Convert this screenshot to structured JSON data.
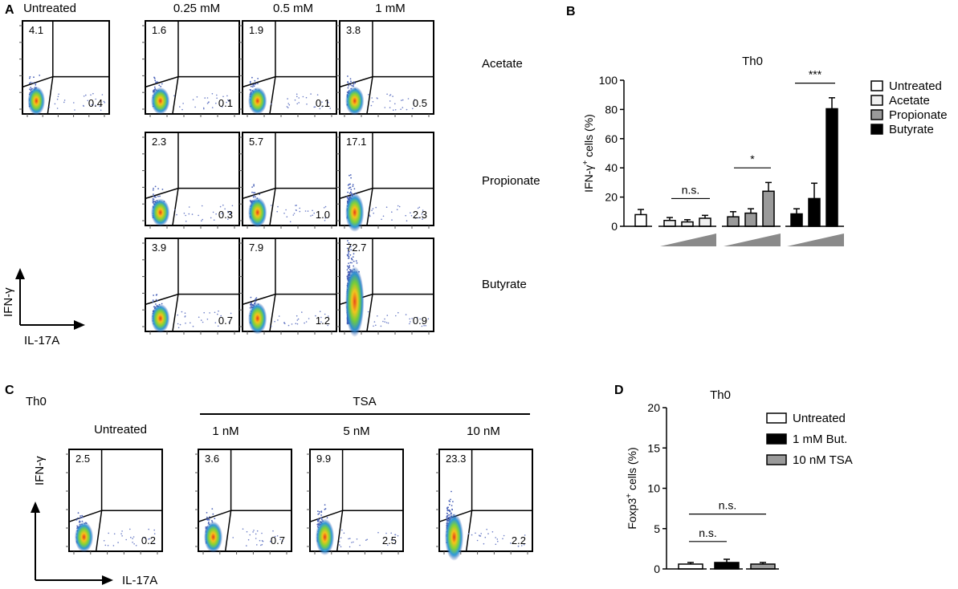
{
  "panel_labels": {
    "a": "A",
    "b": "B",
    "c": "C",
    "d": "D"
  },
  "panel_a": {
    "column_headers": [
      "Untreated",
      "0.25 mM",
      "0.5 mM",
      "1 mM"
    ],
    "row_labels": [
      "Acetate",
      "Propionate",
      "Butyrate"
    ],
    "axis_y": "IFN-γ",
    "axis_x": "IL-17A",
    "untreated_plot": {
      "top_left": "4.1",
      "bottom_right": "0.4"
    },
    "plots": [
      [
        {
          "top_left": "1.6",
          "bottom_right": "0.1"
        },
        {
          "top_left": "1.9",
          "bottom_right": "0.1"
        },
        {
          "top_left": "3.8",
          "bottom_right": "0.5"
        }
      ],
      [
        {
          "top_left": "2.3",
          "bottom_right": "0.3"
        },
        {
          "top_left": "5.7",
          "bottom_right": "1.0"
        },
        {
          "top_left": "17.1",
          "bottom_right": "2.3"
        }
      ],
      [
        {
          "top_left": "3.9",
          "bottom_right": "0.7"
        },
        {
          "top_left": "7.9",
          "bottom_right": "1.2"
        },
        {
          "top_left": "72.7",
          "bottom_right": "0.9"
        }
      ]
    ]
  },
  "panel_c": {
    "condition_label": "Th0",
    "group_label": "TSA",
    "column_headers": [
      "Untreated",
      "1 nM",
      "5 nM",
      "10 nM"
    ],
    "axis_y": "IFN-γ",
    "axis_x": "IL-17A",
    "plots": [
      {
        "top_left": "2.5",
        "bottom_right": "0.2"
      },
      {
        "top_left": "3.6",
        "bottom_right": "0.7"
      },
      {
        "top_left": "9.9",
        "bottom_right": "2.5"
      },
      {
        "top_left": "23.3",
        "bottom_right": "2.2"
      }
    ]
  },
  "chart_data": [
    {
      "id": "B",
      "type": "bar",
      "title": "Th0",
      "ylabel": "IFN-γ⁺ cells (%)",
      "ylabel_main": "IFN-γ",
      "ylabel_rest": " cells (%)",
      "ylabel_sup": "+",
      "ylim": [
        0,
        100
      ],
      "yticks": [
        "0",
        "20",
        "40",
        "60",
        "80",
        "100"
      ],
      "legend": [
        {
          "name": "Untreated",
          "color": "#ffffff"
        },
        {
          "name": "Acetate",
          "color": "#f0f0f0"
        },
        {
          "name": "Propionate",
          "color": "#9a9a9a"
        },
        {
          "name": "Butyrate",
          "color": "#000000"
        }
      ],
      "categories": [
        "Untreated",
        "Acetate 0.25 mM",
        "Acetate 0.5 mM",
        "Acetate 1 mM",
        "Propionate 0.25 mM",
        "Propionate 0.5 mM",
        "Propionate 1 mM",
        "Butyrate 0.25 mM",
        "Butyrate 0.5 mM",
        "Butyrate 1 mM"
      ],
      "values": [
        8,
        4,
        3,
        5.5,
        6.5,
        9,
        24,
        8.5,
        19,
        80.5
      ],
      "errors": [
        3.5,
        2,
        1.5,
        2,
        3.5,
        3,
        6,
        3.5,
        10.5,
        7.5
      ],
      "significance": [
        {
          "label": "n.s.",
          "groups": "Acetate"
        },
        {
          "label": "*",
          "groups": "Propionate"
        },
        {
          "label": "***",
          "groups": "Butyrate"
        }
      ]
    },
    {
      "id": "D",
      "type": "bar",
      "title": "Th0",
      "ylabel": "Foxp3⁺ cells (%)",
      "ylabel_main": "Foxp3",
      "ylabel_rest": " cells (%)",
      "ylabel_sup": "+",
      "ylim": [
        0,
        20
      ],
      "yticks": [
        "0",
        "5",
        "10",
        "15",
        "20"
      ],
      "legend": [
        {
          "name": "Untreated",
          "color": "#ffffff"
        },
        {
          "name": "1 mM But.",
          "color": "#000000"
        },
        {
          "name": "10 nM TSA",
          "color": "#9a9a9a"
        }
      ],
      "categories": [
        "Untreated",
        "1 mM But.",
        "10 nM TSA"
      ],
      "values": [
        0.6,
        0.8,
        0.6
      ],
      "errors": [
        0.2,
        0.4,
        0.2
      ],
      "significance": [
        {
          "label": "n.s.",
          "groups": "Untreated vs 1 mM But."
        },
        {
          "label": "n.s.",
          "groups": "Untreated vs 10 nM TSA"
        }
      ]
    }
  ]
}
